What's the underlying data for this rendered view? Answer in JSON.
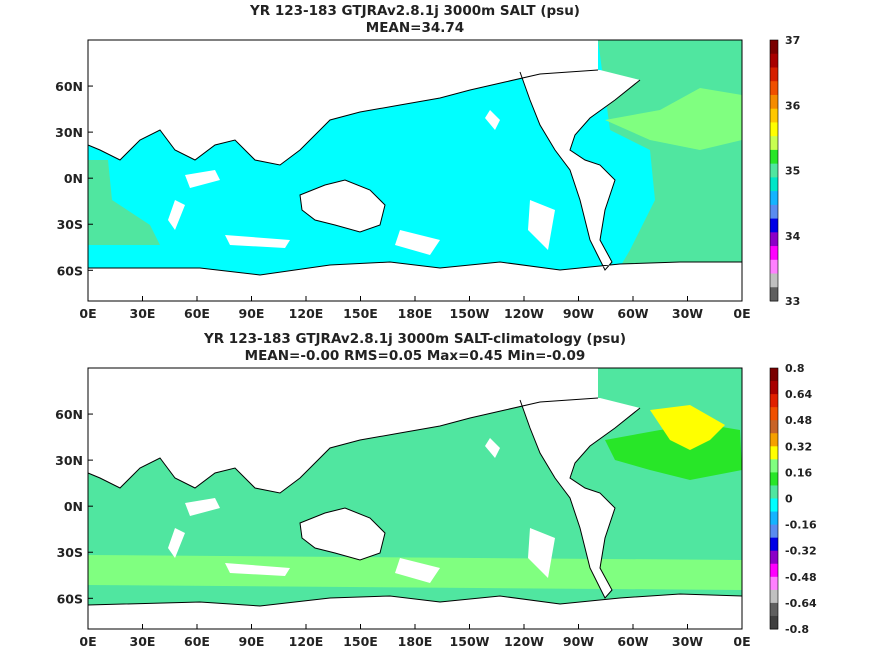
{
  "chart_data": [
    {
      "type": "heatmap",
      "title": "YR 123-183 GTJRAv2.8.1j 3000m SALT (psu)",
      "subtitle": "MEAN=34.74",
      "x_ticks": [
        "0E",
        "30E",
        "60E",
        "90E",
        "120E",
        "150E",
        "180E",
        "150W",
        "120W",
        "90W",
        "60W",
        "30W",
        "0E"
      ],
      "y_ticks": [
        "60N",
        "30N",
        "0N",
        "30S",
        "60S"
      ],
      "colorbar": {
        "ticks": [
          "37",
          "36",
          "35",
          "34",
          "33"
        ],
        "colors": [
          "#7a0000",
          "#a80000",
          "#d62000",
          "#f05000",
          "#f58c00",
          "#ffc800",
          "#ffff00",
          "#c8ff50",
          "#28e628",
          "#50e6a0",
          "#00e6c8",
          "#14b4ff",
          "#5a8cf0",
          "#0000e6",
          "#8c00c8",
          "#ff00ff",
          "#ff80ff",
          "#c0c0c0",
          "#606060"
        ]
      },
      "regions": {
        "ocean_dominant": "#00ffff",
        "atlantic": "#50e6a0",
        "north_atlantic": "#80ff80",
        "arctic_patches": "#28e628"
      }
    },
    {
      "type": "heatmap",
      "title": "YR 123-183 GTJRAv2.8.1j 3000m SALT-climatology (psu)",
      "subtitle": "MEAN=-0.00   RMS=0.05   Max=0.45   Min=-0.09",
      "x_ticks": [
        "0E",
        "30E",
        "60E",
        "90E",
        "120E",
        "150E",
        "180E",
        "150W",
        "120W",
        "90W",
        "60W",
        "30W",
        "0E"
      ],
      "y_ticks": [
        "60N",
        "30N",
        "0N",
        "30S",
        "60S"
      ],
      "colorbar": {
        "ticks": [
          "0.8",
          "0.64",
          "0.48",
          "0.32",
          "0.16",
          "0",
          "-0.16",
          "-0.32",
          "-0.48",
          "-0.64",
          "-0.8"
        ],
        "colors": [
          "#7a0000",
          "#a80000",
          "#e02000",
          "#f05000",
          "#c86428",
          "#f5a000",
          "#ffff00",
          "#80ff80",
          "#28e628",
          "#50e6a0",
          "#00ffff",
          "#14b4ff",
          "#5a8cf0",
          "#0000e6",
          "#8c00c8",
          "#ff00ff",
          "#ff80ff",
          "#c0c0c0",
          "#606060",
          "#404040"
        ]
      },
      "regions": {
        "ocean_dominant": "#50e6a0",
        "southern_band": "#80ff80",
        "north_atlantic_high": "#ffff00",
        "arctic_high": "#f5a000",
        "bering_high": "#c86428"
      }
    }
  ]
}
